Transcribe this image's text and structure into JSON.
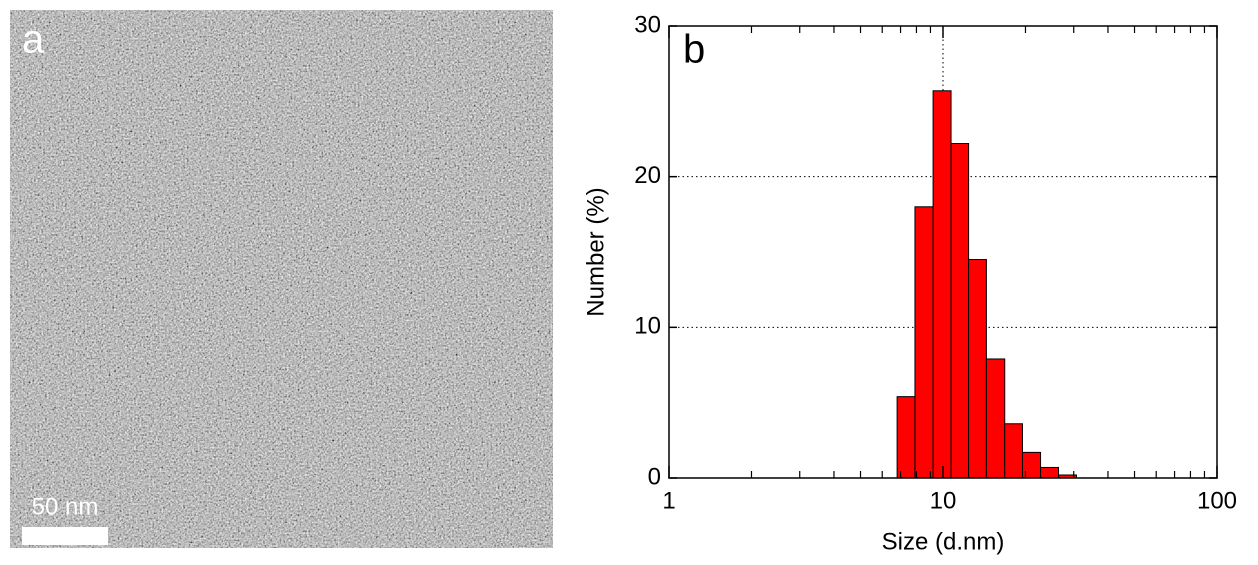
{
  "panel_a": {
    "label": "a",
    "scale_bar": "50 nm"
  },
  "chart_data": {
    "type": "histogram",
    "panel_label": "b",
    "x_label": "Size (d.nm)",
    "y_label": "Number (%)",
    "bins": [
      6.8,
      7.9,
      9.2,
      10.7,
      12.4,
      14.4,
      16.8,
      19.5,
      22.7,
      26.4,
      30.7
    ],
    "values": [
      5.4,
      18.0,
      25.7,
      22.2,
      14.5,
      7.9,
      3.6,
      1.7,
      0.7,
      0.2
    ],
    "color": "#ff0000",
    "xscale": "log",
    "xlim": [
      1,
      100
    ],
    "xticks": [
      1,
      10,
      100
    ],
    "xminor_ticks": [
      2,
      3,
      4,
      5,
      6,
      7,
      8,
      9,
      20,
      30,
      40,
      50,
      60,
      70,
      80,
      90
    ],
    "ylim": [
      0,
      30
    ],
    "yticks": [
      0,
      10,
      20,
      30
    ],
    "grid": true,
    "vline": 10
  }
}
